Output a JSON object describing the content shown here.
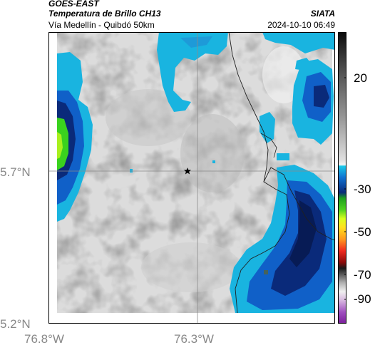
{
  "header": {
    "satellite": "GOES-EAST",
    "product": "Temperatura de Brillo CH13",
    "organization": "SIATA",
    "region": "Vía Medellín - Quibdó 50km",
    "datetime": "2024-10-10 06:49"
  },
  "axes": {
    "lat_labels": [
      "5.7°N",
      "5.2°N"
    ],
    "lon_labels": [
      "76.8°W",
      "76.3°W"
    ]
  },
  "colorbar": {
    "tick_labels": [
      "20",
      "-30",
      "-50",
      "-70",
      "-90"
    ]
  },
  "map": {
    "marker_icon": "star-icon",
    "colors": {
      "background": "#dcdcdc",
      "cyan": "#19b4e0",
      "blue": "#1060c8",
      "navy": "#0a2a7a",
      "green": "#3ad21e",
      "yellow": "#e6ff1e"
    }
  }
}
